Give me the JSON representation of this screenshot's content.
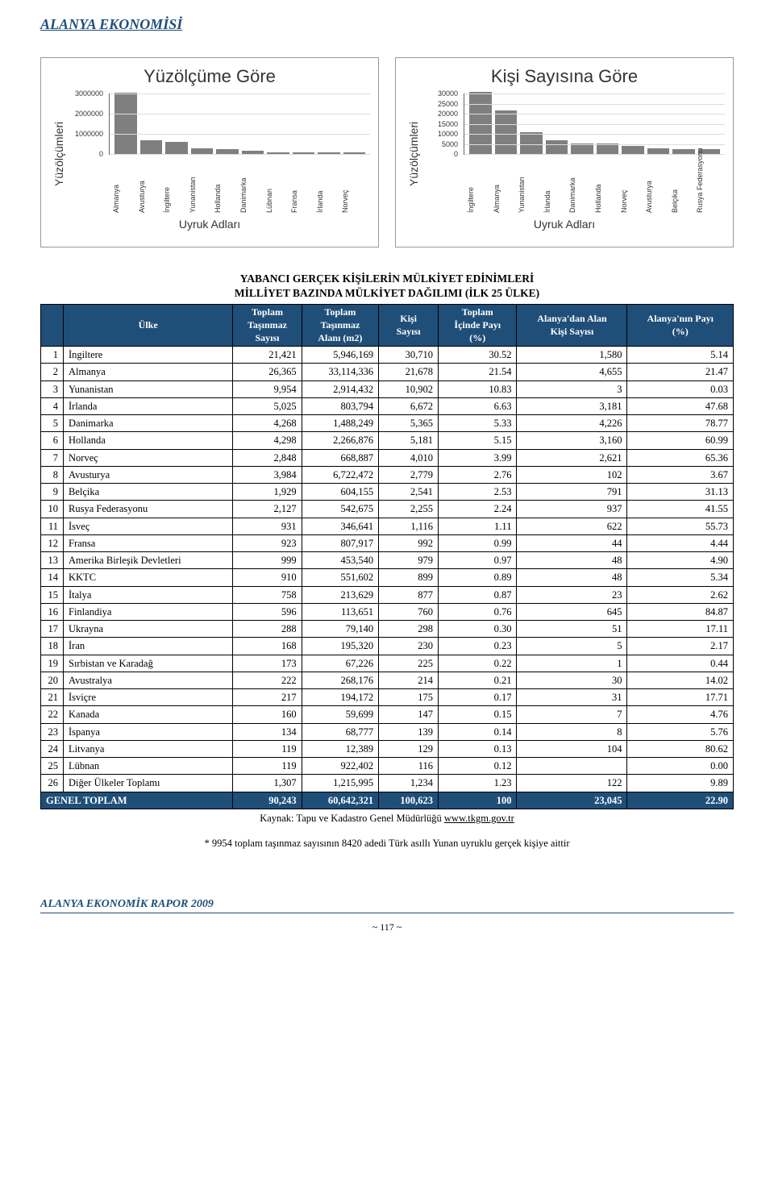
{
  "page_title": "ALANYA EKONOMİSİ",
  "chart1": {
    "type": "bar",
    "title": "Yüzölçüme Göre",
    "ylabel": "Yüzölçümleri",
    "xlabel": "Uyruk Adları",
    "ylim_max": 3000000,
    "yticks": [
      0,
      1000000,
      2000000,
      3000000
    ],
    "bar_color": "#7f7f7f",
    "grid_color": "#dddddd",
    "categories": [
      "Almanya",
      "Avusturya",
      "İngiltere",
      "Yunanistan",
      "Hollanda",
      "Danimarka",
      "Lübnan",
      "Fransa",
      "İrlanda",
      "Norveç"
    ],
    "values": [
      3050000,
      670000,
      590000,
      290000,
      230000,
      150000,
      90000,
      80000,
      80000,
      70000
    ]
  },
  "chart2": {
    "type": "bar",
    "title": "Kişi Sayısına Göre",
    "ylabel": "Yüzölçümleri",
    "xlabel": "Uyruk Adları",
    "ylim_max": 30000,
    "yticks": [
      0,
      5000,
      10000,
      15000,
      20000,
      25000,
      30000
    ],
    "bar_color": "#7f7f7f",
    "grid_color": "#dddddd",
    "categories": [
      "İngiltere",
      "Almanya",
      "Yunanistan",
      "İrlanda",
      "Danimarka",
      "Hollanda",
      "Norveç",
      "Avusturya",
      "Belçika",
      "Rusya Federasyonu"
    ],
    "values": [
      30710,
      21678,
      10902,
      6672,
      5365,
      5181,
      4010,
      2779,
      2541,
      2255
    ]
  },
  "table": {
    "title_line1": "YABANCI GERÇEK KİŞİLERİN MÜLKİYET EDİNİMLERİ",
    "title_line2": "MİLLİYET BAZINDA MÜLKİYET DAĞILIMI (İLK 25 ÜLKE)",
    "columns": [
      "",
      "Ülke",
      "Toplam Taşınmaz Sayısı",
      "Toplam Taşınmaz Alanı (m2)",
      "Kişi Sayısı",
      "Toplam İçinde Payı (%)",
      "Alanya'dan Alan Kişi Sayısı",
      "Alanya'nın Payı (%)"
    ],
    "rows": [
      [
        "1",
        "İngiltere",
        "21,421",
        "5,946,169",
        "30,710",
        "30.52",
        "1,580",
        "5.14"
      ],
      [
        "2",
        "Almanya",
        "26,365",
        "33,114,336",
        "21,678",
        "21.54",
        "4,655",
        "21.47"
      ],
      [
        "3",
        "Yunanistan",
        "9,954",
        "2,914,432",
        "10,902",
        "10.83",
        "3",
        "0.03"
      ],
      [
        "4",
        "İrlanda",
        "5,025",
        "803,794",
        "6,672",
        "6.63",
        "3,181",
        "47.68"
      ],
      [
        "5",
        "Danimarka",
        "4,268",
        "1,488,249",
        "5,365",
        "5.33",
        "4,226",
        "78.77"
      ],
      [
        "6",
        "Hollanda",
        "4,298",
        "2,266,876",
        "5,181",
        "5.15",
        "3,160",
        "60.99"
      ],
      [
        "7",
        "Norveç",
        "2,848",
        "668,887",
        "4,010",
        "3.99",
        "2,621",
        "65.36"
      ],
      [
        "8",
        "Avusturya",
        "3,984",
        "6,722,472",
        "2,779",
        "2.76",
        "102",
        "3.67"
      ],
      [
        "9",
        "Belçika",
        "1,929",
        "604,155",
        "2,541",
        "2.53",
        "791",
        "31.13"
      ],
      [
        "10",
        "Rusya Federasyonu",
        "2,127",
        "542,675",
        "2,255",
        "2.24",
        "937",
        "41.55"
      ],
      [
        "11",
        "İsveç",
        "931",
        "346,641",
        "1,116",
        "1.11",
        "622",
        "55.73"
      ],
      [
        "12",
        "Fransa",
        "923",
        "807,917",
        "992",
        "0.99",
        "44",
        "4.44"
      ],
      [
        "13",
        "Amerika Birleşik Devletleri",
        "999",
        "453,540",
        "979",
        "0.97",
        "48",
        "4.90"
      ],
      [
        "14",
        "KKTC",
        "910",
        "551,602",
        "899",
        "0.89",
        "48",
        "5.34"
      ],
      [
        "15",
        "İtalya",
        "758",
        "213,629",
        "877",
        "0.87",
        "23",
        "2.62"
      ],
      [
        "16",
        "Finlandiya",
        "596",
        "113,651",
        "760",
        "0.76",
        "645",
        "84.87"
      ],
      [
        "17",
        "Ukrayna",
        "288",
        "79,140",
        "298",
        "0.30",
        "51",
        "17.11"
      ],
      [
        "18",
        "İran",
        "168",
        "195,320",
        "230",
        "0.23",
        "5",
        "2.17"
      ],
      [
        "19",
        "Sırbistan ve Karadağ",
        "173",
        "67,226",
        "225",
        "0.22",
        "1",
        "0.44"
      ],
      [
        "20",
        "Avustralya",
        "222",
        "268,176",
        "214",
        "0.21",
        "30",
        "14.02"
      ],
      [
        "21",
        "İsviçre",
        "217",
        "194,172",
        "175",
        "0.17",
        "31",
        "17.71"
      ],
      [
        "22",
        "Kanada",
        "160",
        "59,699",
        "147",
        "0.15",
        "7",
        "4.76"
      ],
      [
        "23",
        "İspanya",
        "134",
        "68,777",
        "139",
        "0.14",
        "8",
        "5.76"
      ],
      [
        "24",
        "Litvanya",
        "119",
        "12,389",
        "129",
        "0.13",
        "104",
        "80.62"
      ],
      [
        "25",
        "Lübnan",
        "119",
        "922,402",
        "116",
        "0.12",
        "",
        "0.00"
      ],
      [
        "26",
        "Diğer Ülkeler Toplamı",
        "1,307",
        "1,215,995",
        "1,234",
        "1.23",
        "122",
        "9.89"
      ]
    ],
    "total_row": [
      "GENEL TOPLAM",
      "90,243",
      "60,642,321",
      "100,623",
      "100",
      "23,045",
      "22.90"
    ]
  },
  "source_prefix": "Kaynak: Tapu ve Kadastro Genel Müdürlüğü ",
  "source_link": "www.tkgm.gov.tr",
  "footnote": "* 9954 toplam taşınmaz sayısının 8420 adedi Türk asıllı Yunan uyruklu gerçek kişiye aittir",
  "footer_title": "ALANYA EKONOMİK RAPOR 2009",
  "page_number": "~ 117 ~"
}
